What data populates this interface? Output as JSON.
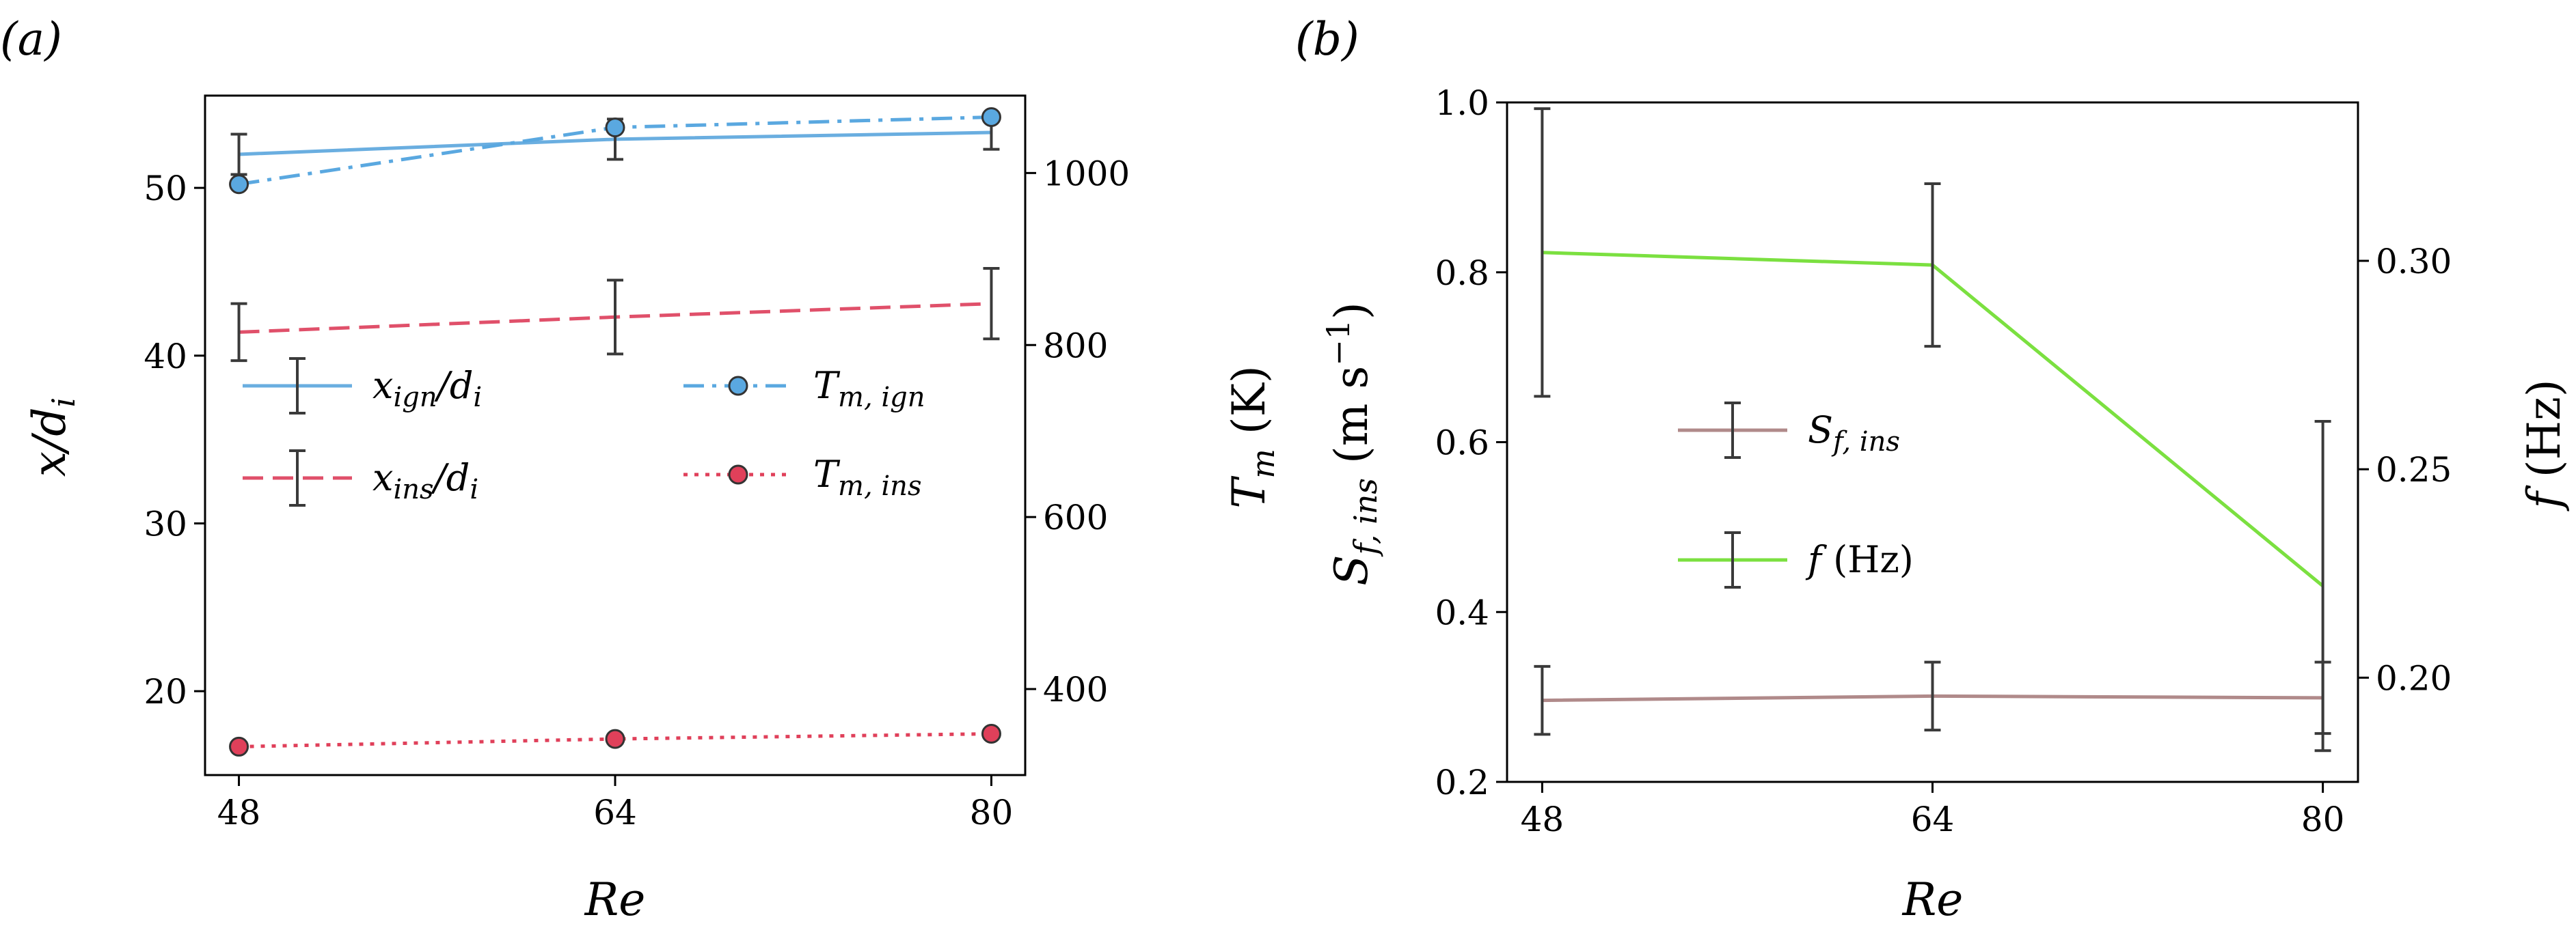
{
  "chart_data": [
    {
      "panel": "(a)",
      "panel_label": "(a)",
      "type": "line",
      "xlabel": "Re",
      "ylabel": "x/d_i",
      "ylabel_right": "T_m (K)",
      "x": [
        48,
        64,
        80
      ],
      "x_tick_labels": [
        "48",
        "64",
        "80"
      ],
      "ylim": [
        15,
        55.5
      ],
      "y_ticks": [
        20,
        30,
        40,
        50
      ],
      "ylim_right": [
        300,
        1090
      ],
      "y_right_ticks": [
        400,
        600,
        800,
        1000
      ],
      "series": [
        {
          "name": "x_ign/d_i",
          "axis": "left",
          "values": [
            52.0,
            52.9,
            53.3
          ],
          "error": [
            1.2,
            1.2,
            1.0
          ],
          "color": "#6aaee0",
          "dash": "solid",
          "marker": "none"
        },
        {
          "name": "x_ins/d_i",
          "axis": "left",
          "values": [
            41.4,
            42.3,
            43.1
          ],
          "error": [
            1.7,
            2.2,
            2.1
          ],
          "color": "#e0506a",
          "dash": "dashed",
          "marker": "none"
        },
        {
          "name": "T_m, ign",
          "axis": "right",
          "values": [
            987,
            1053,
            1065
          ],
          "error": [
            0,
            0,
            0
          ],
          "color": "#5aa8e0",
          "dash": "dashdot",
          "marker": "circle"
        },
        {
          "name": "T_m, ins",
          "axis": "right",
          "values": [
            333,
            342,
            348
          ],
          "error": [
            0,
            0,
            0
          ],
          "color": "#e0405a",
          "dash": "dotted",
          "marker": "circle"
        }
      ],
      "legend": {
        "placement": "center",
        "entries": [
          {
            "main": "x",
            "sub": "ign",
            "tail": "/d",
            "tail_sub": "i"
          },
          {
            "main": "T",
            "sub": "m, ign",
            "tail": "",
            "tail_sub": ""
          },
          {
            "main": "x",
            "sub": "ins",
            "tail": "/d",
            "tail_sub": "i"
          },
          {
            "main": "T",
            "sub": "m, ins",
            "tail": "",
            "tail_sub": ""
          }
        ]
      }
    },
    {
      "panel": "(b)",
      "panel_label": "(b)",
      "type": "line",
      "xlabel": "Re",
      "ylabel": "S_f, ins (m s^-1)",
      "ylabel_right": "f (Hz)",
      "x": [
        48,
        64,
        80
      ],
      "x_tick_labels": [
        "48",
        "64",
        "80"
      ],
      "ylim": [
        0.2,
        1.0
      ],
      "y_ticks": [
        0.2,
        0.4,
        0.6,
        0.8,
        1.0
      ],
      "y_tick_labels": [
        "0.2",
        "0.4",
        "0.6",
        "0.8",
        "1.0"
      ],
      "ylim_right": [
        0.175,
        0.338
      ],
      "y_right_ticks": [
        0.2,
        0.25,
        0.3
      ],
      "y_right_tick_labels": [
        "0.20",
        "0.25",
        "0.30"
      ],
      "series": [
        {
          "name": "S_f, ins",
          "axis": "left",
          "values": [
            0.296,
            0.301,
            0.299
          ],
          "error": [
            0.04,
            0.04,
            0.042
          ],
          "color": "#b08a8a",
          "dash": "solid",
          "marker": "none"
        },
        {
          "name": "f (Hz)",
          "axis": "right",
          "values": [
            0.302,
            0.299,
            0.222
          ],
          "error": [
            0.0345,
            0.0195,
            0.0395
          ],
          "color": "#7be040",
          "dash": "solid",
          "marker": "none"
        }
      ],
      "legend": {
        "placement": "center",
        "entries": [
          {
            "main": "S",
            "sub": "f, ins",
            "tail": "",
            "tail_sub": ""
          },
          {
            "main": "f",
            "sub": "",
            "tail": " (Hz)",
            "tail_sub": ""
          }
        ]
      }
    }
  ]
}
